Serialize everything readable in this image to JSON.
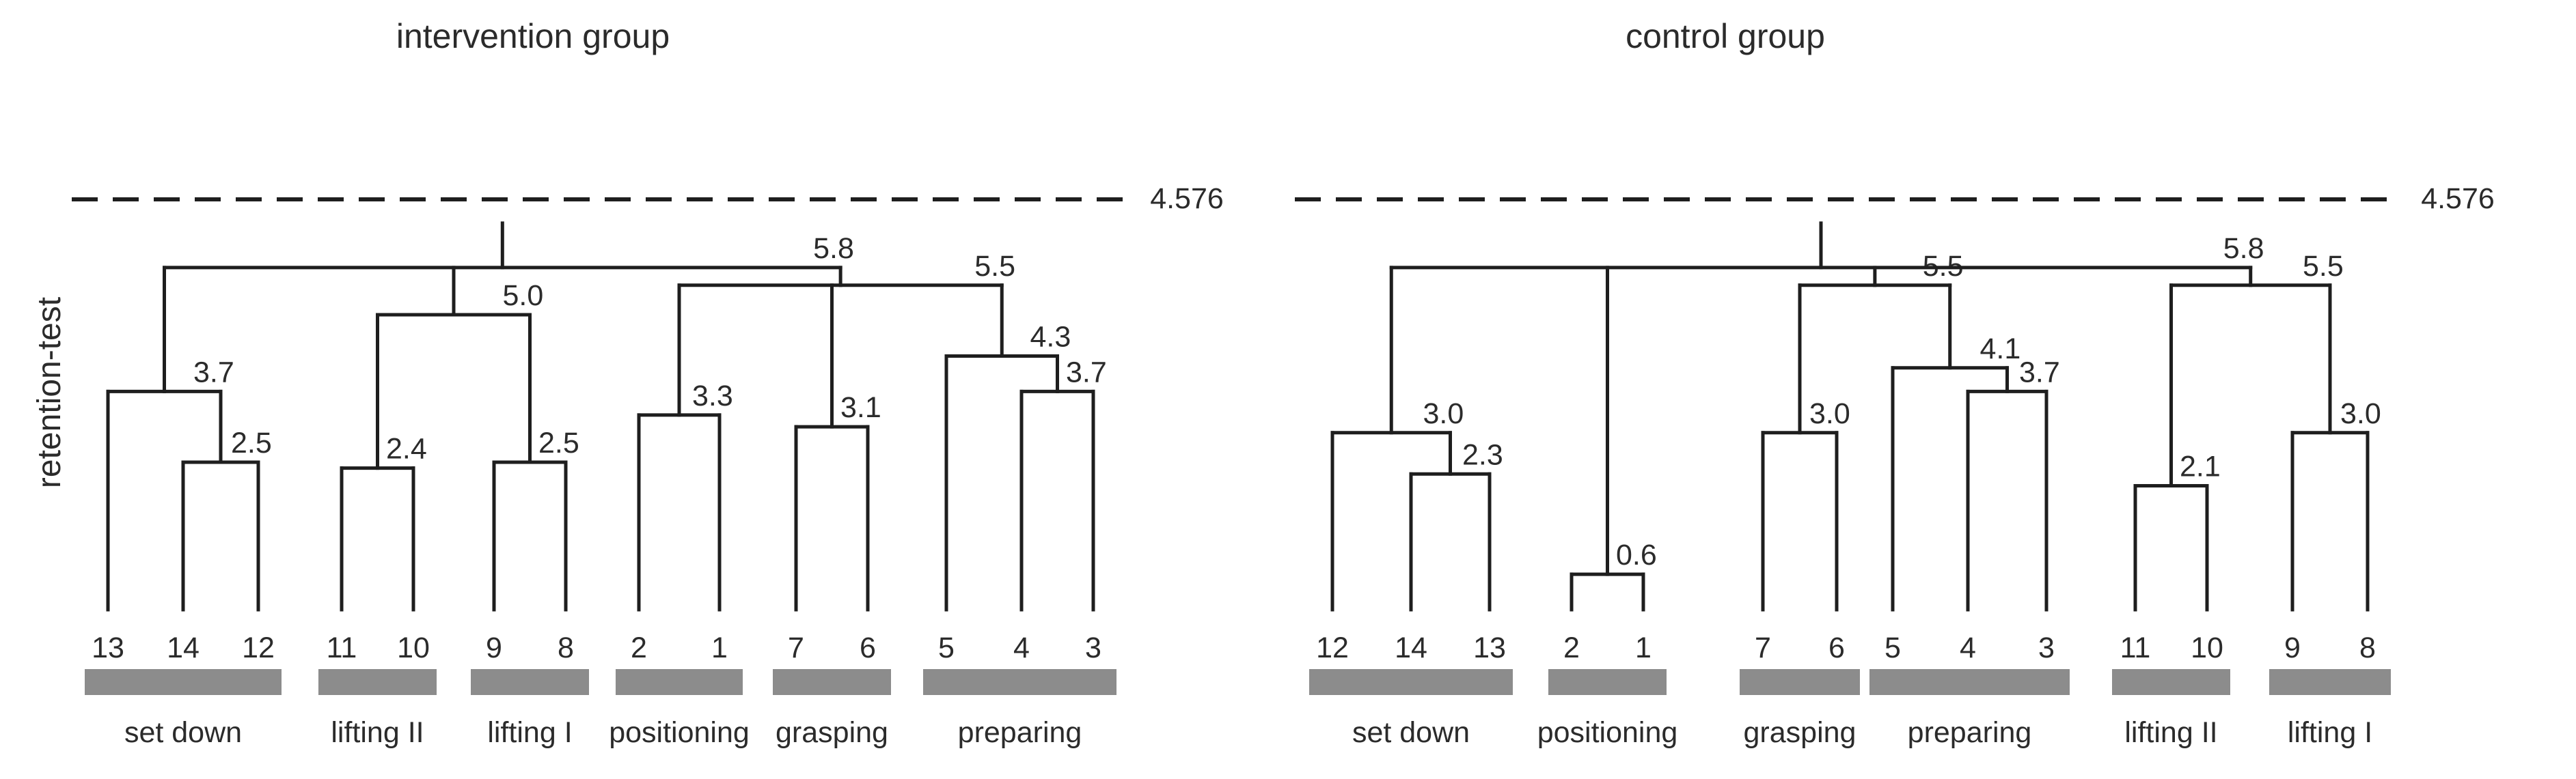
{
  "y_axis_label": "retention-test",
  "cutoff_label": "4.576",
  "colors": {
    "ink": "#1e1e1e",
    "group_bar": "#8c8c8c",
    "text": "#2b2b2b"
  },
  "panels": [
    {
      "title": "intervention group",
      "leaves": [
        "13",
        "14",
        "12",
        "11",
        "10",
        "9",
        "8",
        "2",
        "1",
        "7",
        "6",
        "5",
        "4",
        "3"
      ],
      "merges": [
        [
          "14",
          "12",
          "2.5"
        ],
        [
          "13",
          "m1",
          "3.7"
        ],
        [
          "11",
          "10",
          "2.4"
        ],
        [
          "9",
          "8",
          "2.5"
        ],
        [
          "m3",
          "m4",
          "5.0"
        ],
        [
          "2",
          "1",
          "3.3"
        ],
        [
          "7",
          "6",
          "3.1"
        ],
        [
          "4",
          "3",
          "3.7"
        ],
        [
          "5",
          "m8",
          "4.3"
        ],
        [
          "m6",
          "m7",
          "m9",
          "5.5"
        ],
        [
          "m2",
          "m5",
          "m10",
          "5.8"
        ]
      ],
      "groups": [
        "set down",
        "lifting II",
        "lifting I",
        "positioning",
        "grasping",
        "preparing"
      ]
    },
    {
      "title": "control group",
      "leaves": [
        "12",
        "14",
        "13",
        "2",
        "1",
        "7",
        "6",
        "5",
        "4",
        "3",
        "11",
        "10",
        "9",
        "8"
      ],
      "merges": [
        [
          "14",
          "13",
          "2.3"
        ],
        [
          "12",
          "m1",
          "3.0"
        ],
        [
          "2",
          "1",
          "0.6"
        ],
        [
          "7",
          "6",
          "3.0"
        ],
        [
          "4",
          "3",
          "3.7"
        ],
        [
          "5",
          "m5",
          "4.1"
        ],
        [
          "m4",
          "m6",
          "5.5"
        ],
        [
          "11",
          "10",
          "2.1"
        ],
        [
          "9",
          "8",
          "3.0"
        ],
        [
          "m8",
          "m9",
          "5.5"
        ],
        [
          "m2",
          "m3",
          "m7",
          "m10",
          "5.8"
        ]
      ],
      "groups": [
        "set down",
        "positioning",
        "grasping",
        "preparing",
        "lifting II",
        "lifting I"
      ]
    }
  ]
}
